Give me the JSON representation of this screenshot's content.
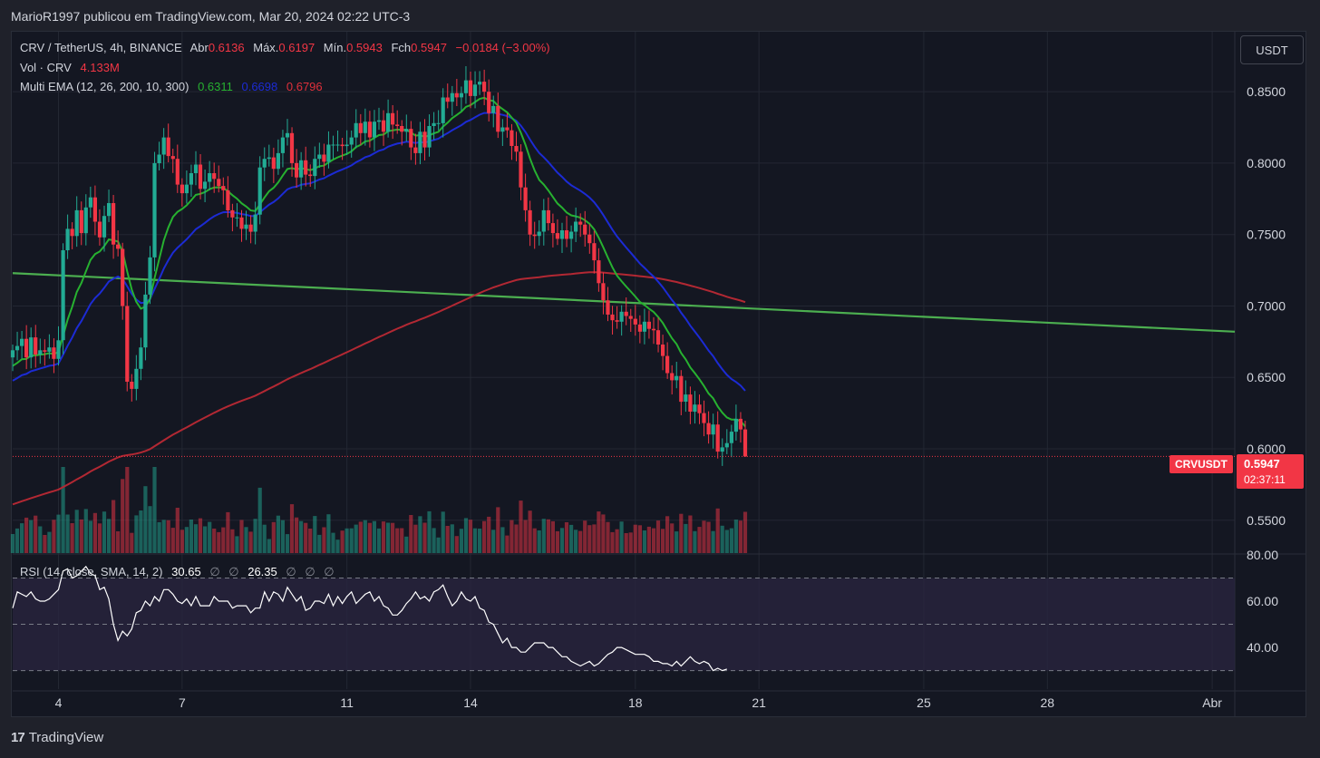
{
  "header": {
    "published": "MarioR1997 publicou em TradingView.com, Mar 20, 2024 02:22 UTC-3"
  },
  "legend": {
    "symbol": "CRV / TetherUS, 4h, BINANCE",
    "open_label": "Abr",
    "open": "0.6136",
    "high_label": "Máx.",
    "high": "0.6197",
    "low_label": "Mín.",
    "low": "0.5943",
    "close_label": "Fch",
    "close": "0.5947",
    "change": "−0.0184 (−3.00%)",
    "volume_label": "Vol · CRV",
    "volume": "4.133M",
    "ema_label": "Multi EMA (12, 26, 200, 10, 300)",
    "ema_values": [
      "0.6311",
      "0.6698",
      "0.6796"
    ],
    "rsi_label": "RSI (14, close, SMA, 14, 2)",
    "rsi_value": "30.65",
    "rsi_ph1": "∅",
    "rsi_ph2": "∅",
    "rsi_ma": "26.35",
    "rsi_ph3": "∅",
    "rsi_ph4": "∅",
    "rsi_ph5": "∅"
  },
  "currency_button": "USDT",
  "price_tag": {
    "symbol": "CRVUSDT",
    "price": "0.5947",
    "countdown": "02:37:11"
  },
  "footer": {
    "brand": "TradingView",
    "logo_glyph": "17"
  },
  "colors": {
    "up": "#22ab94",
    "down": "#f23645",
    "ema12": "#27b130",
    "ema26": "#1c2bd4",
    "ema200": "#b22833",
    "trendline": "#4caf50",
    "rsi": "#ffffff"
  },
  "chart_data": {
    "type": "candlestick",
    "price_axis": {
      "ticks": [
        "0.8500",
        "0.8000",
        "0.7500",
        "0.7000",
        "0.6500",
        "0.6000",
        "0.5500"
      ],
      "ylim": [
        0.527,
        0.892
      ]
    },
    "rsi_axis": {
      "ticks": [
        "80.00",
        "60.00",
        "40.00"
      ],
      "ylim": [
        22,
        80
      ],
      "bands": [
        70,
        50,
        30
      ]
    },
    "x_ticks": [
      "4",
      "7",
      "11",
      "14",
      "18",
      "21",
      "25",
      "28",
      "Abr"
    ],
    "x_tick_index": [
      10,
      37,
      73,
      100,
      136,
      163,
      199,
      226,
      262
    ],
    "current_price": 0.5947,
    "closes": [
      0.669,
      0.672,
      0.677,
      0.664,
      0.678,
      0.666,
      0.669,
      0.668,
      0.671,
      0.663,
      0.676,
      0.739,
      0.754,
      0.749,
      0.767,
      0.751,
      0.769,
      0.776,
      0.759,
      0.748,
      0.763,
      0.772,
      0.743,
      0.74,
      0.7,
      0.647,
      0.642,
      0.656,
      0.671,
      0.708,
      0.734,
      0.8,
      0.806,
      0.818,
      0.805,
      0.803,
      0.785,
      0.779,
      0.785,
      0.793,
      0.799,
      0.782,
      0.787,
      0.793,
      0.789,
      0.784,
      0.781,
      0.767,
      0.762,
      0.762,
      0.754,
      0.757,
      0.752,
      0.764,
      0.797,
      0.803,
      0.804,
      0.796,
      0.807,
      0.818,
      0.821,
      0.8,
      0.79,
      0.802,
      0.792,
      0.791,
      0.803,
      0.806,
      0.801,
      0.813,
      0.813,
      0.813,
      0.812,
      0.813,
      0.818,
      0.828,
      0.821,
      0.829,
      0.818,
      0.829,
      0.83,
      0.822,
      0.835,
      0.827,
      0.826,
      0.822,
      0.824,
      0.811,
      0.807,
      0.822,
      0.811,
      0.826,
      0.828,
      0.828,
      0.846,
      0.843,
      0.849,
      0.846,
      0.849,
      0.858,
      0.847,
      0.855,
      0.857,
      0.85,
      0.835,
      0.84,
      0.822,
      0.825,
      0.823,
      0.812,
      0.808,
      0.783,
      0.767,
      0.75,
      0.749,
      0.752,
      0.767,
      0.758,
      0.751,
      0.747,
      0.753,
      0.747,
      0.752,
      0.759,
      0.757,
      0.75,
      0.744,
      0.732,
      0.716,
      0.704,
      0.694,
      0.69,
      0.689,
      0.696,
      0.693,
      0.691,
      0.687,
      0.682,
      0.689,
      0.684,
      0.683,
      0.673,
      0.665,
      0.653,
      0.648,
      0.651,
      0.633,
      0.638,
      0.626,
      0.631,
      0.625,
      0.618,
      0.61,
      0.617,
      0.598,
      0.601,
      0.604,
      0.612,
      0.621,
      0.6136,
      0.5947
    ],
    "rsi": [
      57,
      64,
      63,
      62,
      64,
      61,
      60,
      60,
      61,
      63,
      65,
      73,
      74,
      70,
      71,
      73,
      75,
      72,
      71,
      65,
      66,
      61,
      50,
      43,
      47,
      45,
      48,
      55,
      56,
      60,
      58,
      62,
      60,
      65,
      65,
      63,
      60,
      59,
      61,
      58,
      62,
      58,
      58,
      58,
      62,
      60,
      60,
      60,
      57,
      58,
      58,
      58,
      55,
      57,
      57,
      64,
      60,
      64,
      63,
      60,
      66,
      63,
      60,
      62,
      56,
      57,
      60,
      60,
      59,
      63,
      58,
      62,
      59,
      62,
      64,
      59,
      61,
      63,
      64,
      60,
      62,
      58,
      57,
      54,
      54,
      56,
      59,
      61,
      64,
      61,
      62,
      60,
      64,
      65,
      67,
      62,
      58,
      60,
      64,
      61,
      60,
      62,
      57,
      56,
      51,
      50,
      46,
      42,
      44,
      40,
      40,
      38,
      38,
      40,
      42,
      42,
      42,
      40,
      40,
      38,
      36,
      36,
      34,
      33,
      32,
      33,
      34,
      32,
      33,
      35,
      37,
      38,
      40,
      40,
      39,
      38,
      37,
      37,
      37,
      36,
      34,
      34,
      33,
      33,
      32,
      34,
      32,
      34,
      36,
      34,
      33,
      34,
      33,
      30,
      31,
      30,
      30.65
    ]
  }
}
